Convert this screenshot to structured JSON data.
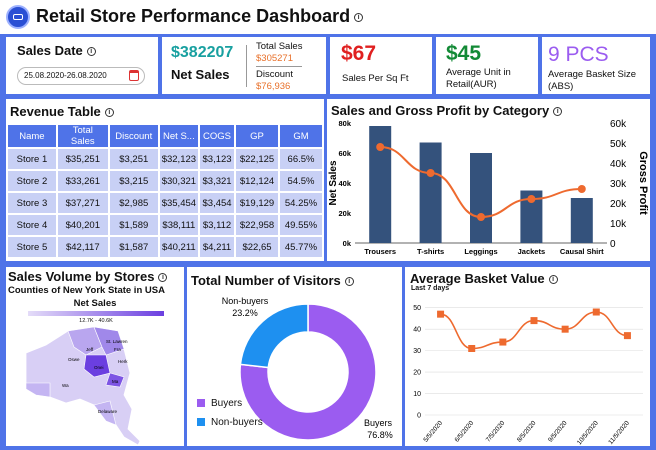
{
  "header": {
    "title": "Retail Store Performance Dashboard"
  },
  "sales_date": {
    "label": "Sales Date",
    "range": "25.08.2020-26.08.2020"
  },
  "net_sales": {
    "value": "$382207",
    "label": "Net Sales",
    "total_sales_label": "Total Sales",
    "total_sales_value": "$305271",
    "discount_label": "Discount",
    "discount_value": "$76,936"
  },
  "kpis": [
    {
      "value": "$67",
      "label": "Sales Per Sq Ft",
      "color": "#e02020"
    },
    {
      "value": "$45",
      "label": "Average Unit in Retail(AUR)",
      "color": "#138a36"
    },
    {
      "value": "9 PCS",
      "label": "Average Basket Size (ABS)",
      "color": "#9b5cf0"
    }
  ],
  "revenue_table": {
    "title": "Revenue Table",
    "columns": [
      "Name",
      "Total Sales",
      "Discount",
      "Net S...",
      "COGS",
      "GP",
      "GM"
    ],
    "rows": [
      [
        "Store 1",
        "$35,251",
        "$3,251",
        "$32,123",
        "$3,123",
        "$22,125",
        "66.5%"
      ],
      [
        "Store 2",
        "$33,261",
        "$3,215",
        "$30,321",
        "$3,321",
        "$12,124",
        "54.5%"
      ],
      [
        "Store 3",
        "$37,271",
        "$2,985",
        "$35,454",
        "$3,454",
        "$19,129",
        "54.25%"
      ],
      [
        "Store 4",
        "$40,201",
        "$1,589",
        "$38,111",
        "$3,112",
        "$22,958",
        "49.55%"
      ],
      [
        "Store 5",
        "$42,117",
        "$1,587",
        "$40,211",
        "$4,211",
        "$22,65",
        "45.77%"
      ]
    ]
  },
  "chart_data": [
    {
      "type": "bar",
      "title": "Sales and Gross Profit by Category",
      "categories": [
        "Trousers",
        "T-shirts",
        "Leggings",
        "Jackets",
        "Causal Shirt"
      ],
      "series": [
        {
          "name": "Net Sales",
          "type": "bar",
          "values": [
            78,
            67,
            60,
            35,
            30
          ],
          "color": "#34527c"
        },
        {
          "name": "Gross Profit",
          "type": "line",
          "values": [
            48,
            35,
            13,
            22,
            27
          ],
          "color": "#ee6a2f"
        }
      ],
      "ylabel": "Net Sales",
      "ylabel_right": "Gross Profit",
      "yticks": [
        "0k",
        "20k",
        "40k",
        "60k",
        "80k"
      ],
      "yticks_right": [
        "0",
        "10k",
        "20k",
        "30k",
        "40k",
        "50k",
        "60k"
      ],
      "ylim": [
        0,
        80
      ],
      "ylim_right": [
        0,
        60
      ]
    },
    {
      "type": "pie",
      "title": "Total Number of Visitors",
      "labels": [
        "Buyers",
        "Non-buyers"
      ],
      "values": [
        76.8,
        23.2
      ],
      "colors": [
        "#9b5cf0",
        "#1e90f0"
      ],
      "value_labels": [
        "76.8%",
        "23.2%"
      ]
    },
    {
      "type": "line",
      "title": "Average Basket Value",
      "subtitle": "Last 7 days",
      "x": [
        "5/5/2020",
        "6/5/2020",
        "7/5/2020",
        "8/5/2020",
        "9/5/2020",
        "10/5/2020",
        "11/5/2020"
      ],
      "values": [
        47,
        31,
        34,
        44,
        40,
        48,
        37
      ],
      "yticks": [
        "0",
        "10",
        "20",
        "30",
        "40",
        "50"
      ],
      "ylim": [
        0,
        55
      ],
      "color": "#ee6a2f"
    }
  ],
  "map": {
    "title": "Sales Volume by Stores",
    "subtitle": "Counties of New York State in USA",
    "legend_title": "Net Sales",
    "range_label": "12.7K - 40.6K",
    "regions": [
      "Jeff",
      "St. Lawren",
      "Fra",
      "Oswe",
      "Herk",
      "Onei",
      "Ma",
      "Delaware",
      "Wa"
    ]
  }
}
